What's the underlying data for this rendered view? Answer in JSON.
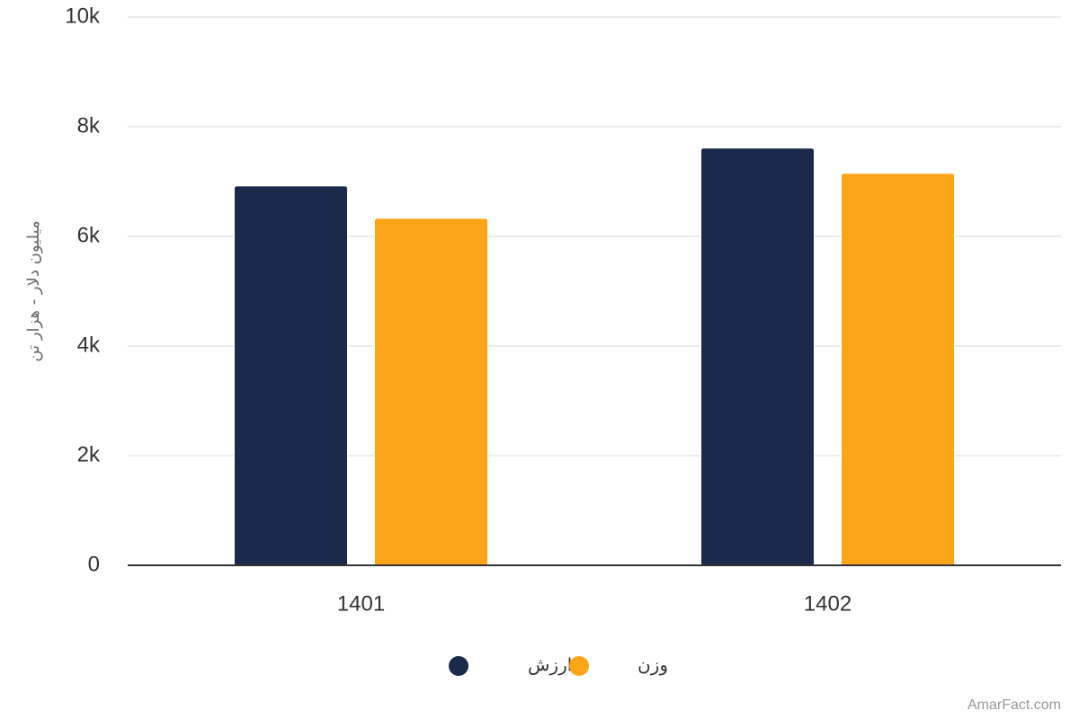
{
  "colors": {
    "series_value": "#1b2a4a",
    "series_weight": "#fba417",
    "grid": "#e6e6e6",
    "axis": "#333333",
    "text": "#333333",
    "axis_title": "#666666",
    "credit": "#999999"
  },
  "credit": "AmarFact.com",
  "chart_data": {
    "type": "bar",
    "title": "",
    "xlabel": "",
    "ylabel": "میلیون دلار - هزار تن",
    "categories": [
      "1401",
      "1402"
    ],
    "series": [
      {
        "name": "ارزش",
        "values": [
          6920,
          7610
        ]
      },
      {
        "name": "وزن",
        "values": [
          6330,
          7150
        ]
      }
    ],
    "ylim": [
      0,
      10000
    ],
    "yticks": [
      {
        "value": 0,
        "label": "0"
      },
      {
        "value": 2000,
        "label": "2k"
      },
      {
        "value": 4000,
        "label": "4k"
      },
      {
        "value": 6000,
        "label": "6k"
      },
      {
        "value": 8000,
        "label": "8k"
      },
      {
        "value": 10000,
        "label": "10k"
      }
    ],
    "grid": true,
    "legend": "bottom-center"
  }
}
